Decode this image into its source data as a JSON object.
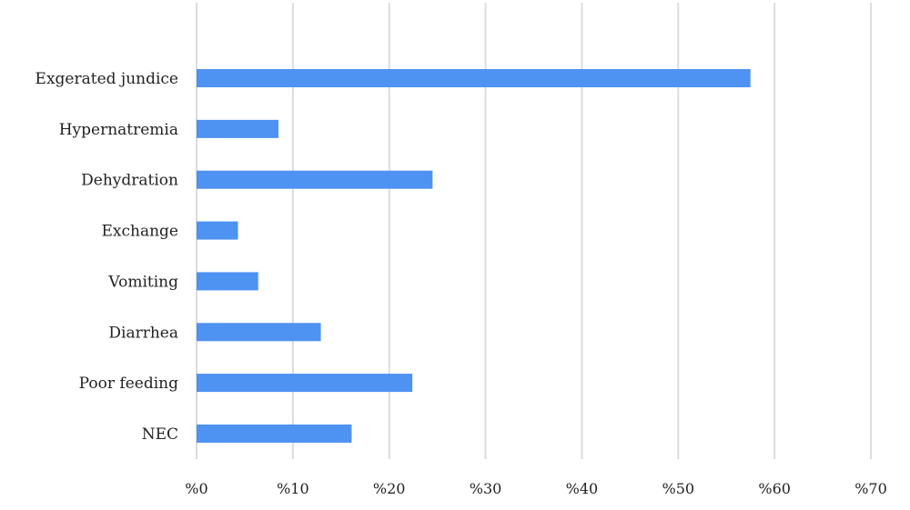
{
  "chart_data": {
    "type": "bar",
    "orientation": "horizontal",
    "categories": [
      "Exgerated jundice",
      "Hypernatremia",
      "Dehydration",
      "Exchange",
      "Vomiting",
      "Diarrhea",
      "Poor feeding",
      "NEC"
    ],
    "values": [
      57.5,
      8.5,
      24.5,
      4.3,
      6.4,
      12.9,
      22.4,
      16.1
    ],
    "xlim": [
      0,
      70
    ],
    "x_ticks": [
      "%0",
      "%10",
      "%20",
      "%30",
      "%40",
      "%50",
      "%60",
      "%70"
    ],
    "x_tick_values": [
      0,
      10,
      20,
      30,
      40,
      50,
      60,
      70
    ],
    "grid": "vertical",
    "legend": "none",
    "title": "",
    "xlabel": "",
    "ylabel": "",
    "bar_color": "#4e92f2",
    "grid_color": "#dcdcdc",
    "text_color": "#222222"
  }
}
